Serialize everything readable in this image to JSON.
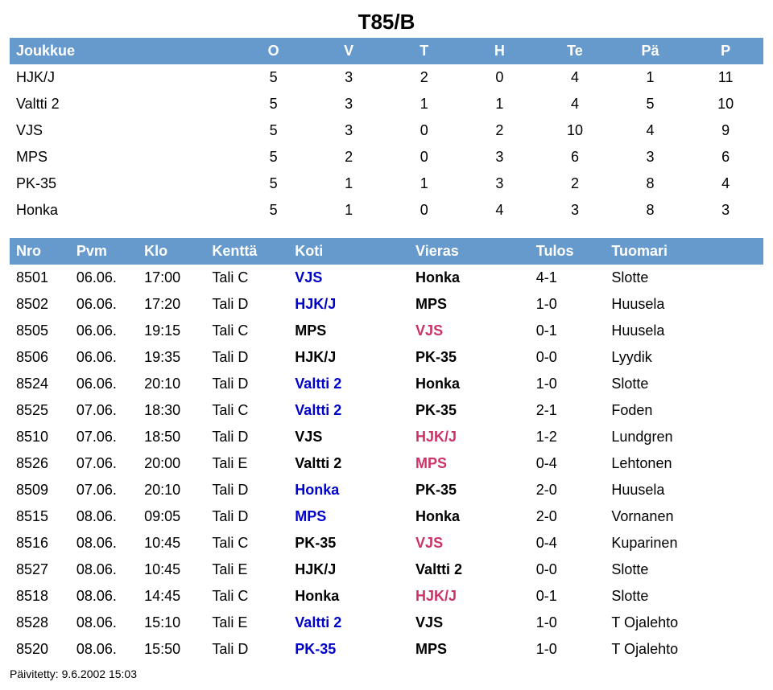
{
  "title": "T85/B",
  "colors": {
    "header_bg": "#6699cc",
    "header_fg": "#ffffff",
    "link_winner": "#0000cc",
    "link_away": "#cc3366",
    "text": "#000000",
    "background": "#ffffff"
  },
  "standings": {
    "columns": [
      "Joukkue",
      "O",
      "V",
      "T",
      "H",
      "Te",
      "Pä",
      "P"
    ],
    "col_widths_pct": [
      30,
      10,
      10,
      10,
      10,
      10,
      10,
      10
    ],
    "rows": [
      {
        "team": "HJK/J",
        "O": 5,
        "V": 3,
        "T": 2,
        "H": 0,
        "Te": 4,
        "Pa": 1,
        "P": 11
      },
      {
        "team": "Valtti 2",
        "O": 5,
        "V": 3,
        "T": 1,
        "H": 1,
        "Te": 4,
        "Pa": 5,
        "P": 10
      },
      {
        "team": "VJS",
        "O": 5,
        "V": 3,
        "T": 0,
        "H": 2,
        "Te": 10,
        "Pa": 4,
        "P": 9
      },
      {
        "team": "MPS",
        "O": 5,
        "V": 2,
        "T": 0,
        "H": 3,
        "Te": 6,
        "Pa": 3,
        "P": 6
      },
      {
        "team": "PK-35",
        "O": 5,
        "V": 1,
        "T": 1,
        "H": 3,
        "Te": 2,
        "Pa": 8,
        "P": 4
      },
      {
        "team": "Honka",
        "O": 5,
        "V": 1,
        "T": 0,
        "H": 4,
        "Te": 3,
        "Pa": 8,
        "P": 3
      }
    ]
  },
  "fixtures": {
    "columns": [
      "Nro",
      "Pvm",
      "Klo",
      "Kenttä",
      "Koti",
      "Vieras",
      "Tulos",
      "Tuomari"
    ],
    "col_widths_pct": [
      8,
      9,
      9,
      11,
      16,
      16,
      10,
      21
    ],
    "rows": [
      {
        "nro": "8501",
        "pvm": "06.06.",
        "klo": "17:00",
        "kentta": "Tali C",
        "koti": "VJS",
        "vieras": "Honka",
        "tulos": "4-1",
        "tuomari": "Slotte",
        "home_win": true
      },
      {
        "nro": "8502",
        "pvm": "06.06.",
        "klo": "17:20",
        "kentta": "Tali D",
        "koti": "HJK/J",
        "vieras": "MPS",
        "tulos": "1-0",
        "tuomari": "Huusela",
        "home_win": true
      },
      {
        "nro": "8505",
        "pvm": "06.06.",
        "klo": "19:15",
        "kentta": "Tali C",
        "koti": "MPS",
        "vieras": "VJS",
        "tulos": "0-1",
        "tuomari": "Huusela",
        "home_win": false
      },
      {
        "nro": "8506",
        "pvm": "06.06.",
        "klo": "19:35",
        "kentta": "Tali D",
        "koti": "HJK/J",
        "vieras": "PK-35",
        "tulos": "0-0",
        "tuomari": "Lyydik",
        "home_win": null
      },
      {
        "nro": "8524",
        "pvm": "06.06.",
        "klo": "20:10",
        "kentta": "Tali D",
        "koti": "Valtti 2",
        "vieras": "Honka",
        "tulos": "1-0",
        "tuomari": "Slotte",
        "home_win": true
      },
      {
        "nro": "8525",
        "pvm": "07.06.",
        "klo": "18:30",
        "kentta": "Tali C",
        "koti": "Valtti 2",
        "vieras": "PK-35",
        "tulos": "2-1",
        "tuomari": "Foden",
        "home_win": true
      },
      {
        "nro": "8510",
        "pvm": "07.06.",
        "klo": "18:50",
        "kentta": "Tali D",
        "koti": "VJS",
        "vieras": "HJK/J",
        "tulos": "1-2",
        "tuomari": "Lundgren",
        "home_win": false
      },
      {
        "nro": "8526",
        "pvm": "07.06.",
        "klo": "20:00",
        "kentta": "Tali E",
        "koti": "Valtti 2",
        "vieras": "MPS",
        "tulos": "0-4",
        "tuomari": "Lehtonen",
        "home_win": false
      },
      {
        "nro": "8509",
        "pvm": "07.06.",
        "klo": "20:10",
        "kentta": "Tali D",
        "koti": "Honka",
        "vieras": "PK-35",
        "tulos": "2-0",
        "tuomari": "Huusela",
        "home_win": true
      },
      {
        "nro": "8515",
        "pvm": "08.06.",
        "klo": "09:05",
        "kentta": "Tali D",
        "koti": "MPS",
        "vieras": "Honka",
        "tulos": "2-0",
        "tuomari": "Vornanen",
        "home_win": true
      },
      {
        "nro": "8516",
        "pvm": "08.06.",
        "klo": "10:45",
        "kentta": "Tali C",
        "koti": "PK-35",
        "vieras": "VJS",
        "tulos": "0-4",
        "tuomari": "Kuparinen",
        "home_win": false
      },
      {
        "nro": "8527",
        "pvm": "08.06.",
        "klo": "10:45",
        "kentta": "Tali E",
        "koti": "HJK/J",
        "vieras": "Valtti 2",
        "tulos": "0-0",
        "tuomari": "Slotte",
        "home_win": null
      },
      {
        "nro": "8518",
        "pvm": "08.06.",
        "klo": "14:45",
        "kentta": "Tali C",
        "koti": "Honka",
        "vieras": "HJK/J",
        "tulos": "0-1",
        "tuomari": "Slotte",
        "home_win": false
      },
      {
        "nro": "8528",
        "pvm": "08.06.",
        "klo": "15:10",
        "kentta": "Tali E",
        "koti": "Valtti 2",
        "vieras": "VJS",
        "tulos": "1-0",
        "tuomari": "T Ojalehto",
        "home_win": true
      },
      {
        "nro": "8520",
        "pvm": "08.06.",
        "klo": "15:50",
        "kentta": "Tali D",
        "koti": "PK-35",
        "vieras": "MPS",
        "tulos": "1-0",
        "tuomari": "T Ojalehto",
        "home_win": true
      }
    ]
  },
  "footer": "Päivitetty: 9.6.2002 15:03"
}
